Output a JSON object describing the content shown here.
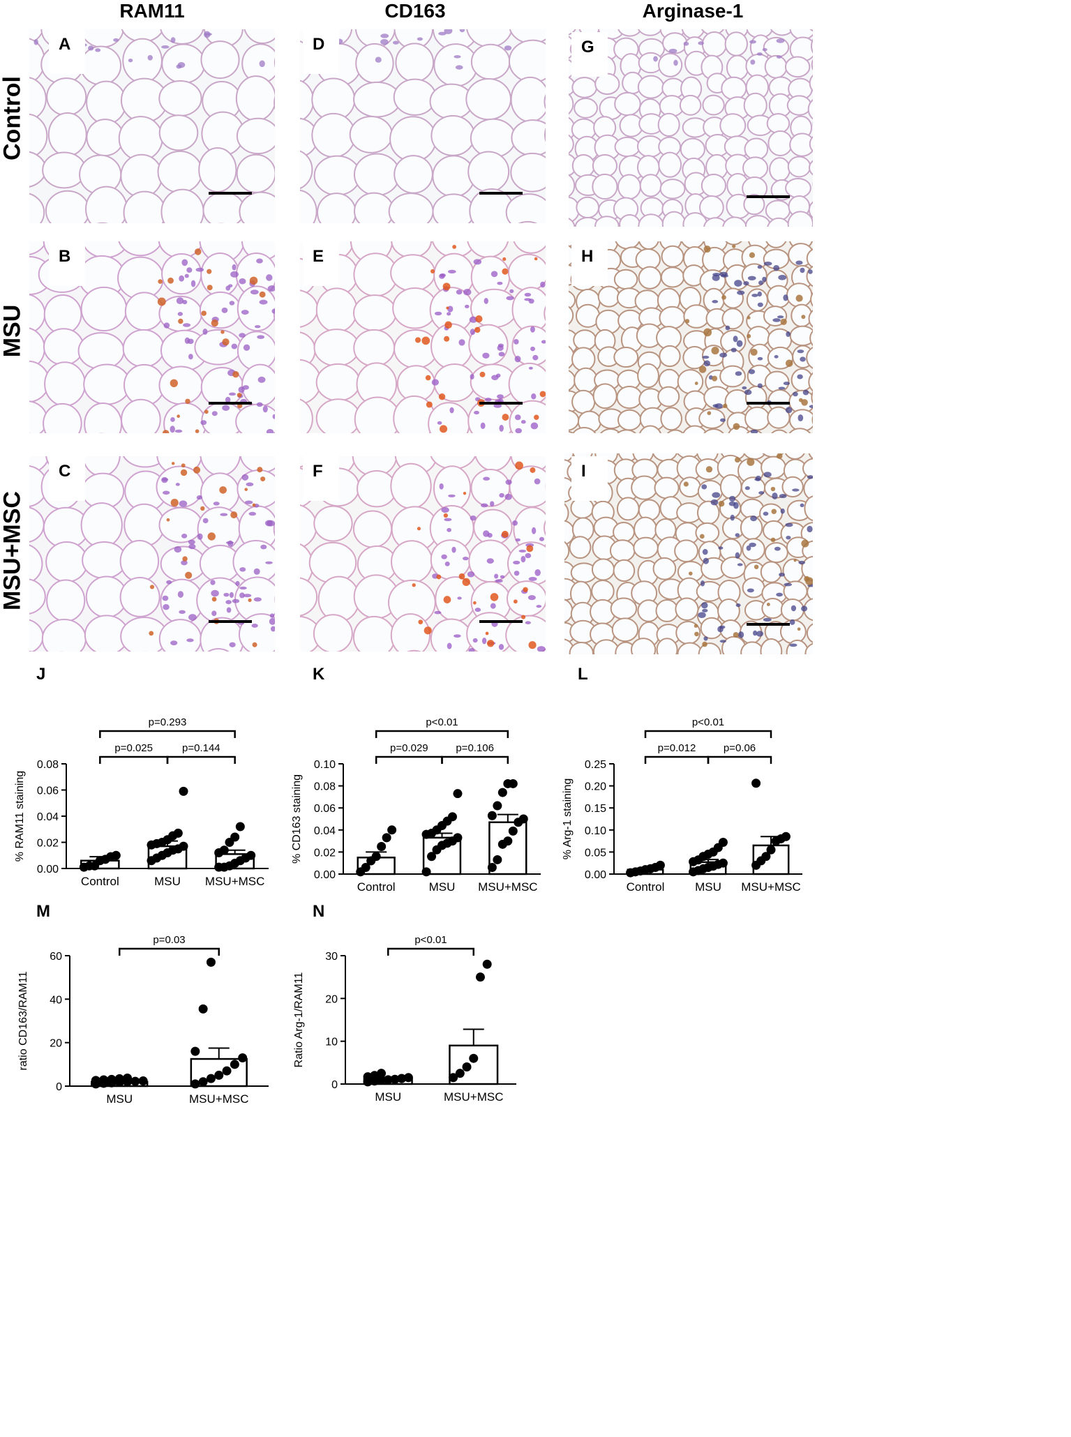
{
  "column_headers": [
    "RAM11",
    "CD163",
    "Arginase-1"
  ],
  "row_headers": [
    "Control",
    "MSU",
    "MSU+MSC"
  ],
  "micrograph_panels": [
    {
      "letter": "A",
      "stain": "light"
    },
    {
      "letter": "B",
      "stain": "moderate"
    },
    {
      "letter": "C",
      "stain": "moderate"
    },
    {
      "letter": "D",
      "stain": "light"
    },
    {
      "letter": "E",
      "stain": "strong"
    },
    {
      "letter": "F",
      "stain": "strong"
    },
    {
      "letter": "G",
      "stain": "light"
    },
    {
      "letter": "H",
      "stain": "brown"
    },
    {
      "letter": "I",
      "stain": "brown"
    }
  ],
  "colors": {
    "bar_edge": "#000000",
    "point": "#000000",
    "background": "#ffffff"
  },
  "chart_data": [
    {
      "letter": "J",
      "type": "bar",
      "ylabel": "% RAM11 staining",
      "categories": [
        "Control",
        "MSU",
        "MSU+MSC"
      ],
      "ylim": [
        0,
        0.08
      ],
      "yticks": [
        0.0,
        0.02,
        0.04,
        0.06,
        0.08
      ],
      "ytick_labels": [
        "0.00",
        "0.02",
        "0.04",
        "0.06",
        "0.08"
      ],
      "values": [
        0.006,
        0.017,
        0.011
      ],
      "sem": [
        0.003,
        0.004,
        0.003
      ],
      "points": [
        [
          0.001,
          0.002,
          0.002,
          0.006,
          0.007,
          0.009,
          0.01
        ],
        [
          0.006,
          0.008,
          0.01,
          0.012,
          0.014,
          0.015,
          0.017,
          0.018,
          0.019,
          0.02,
          0.022,
          0.025,
          0.027,
          0.059
        ],
        [
          0.001,
          0.001,
          0.002,
          0.004,
          0.006,
          0.008,
          0.01,
          0.012,
          0.014,
          0.02,
          0.024,
          0.032
        ]
      ],
      "comparisons": [
        {
          "from": 0,
          "to": 1,
          "label": "p=0.025",
          "level": 0
        },
        {
          "from": 1,
          "to": 2,
          "label": "p=0.144",
          "level": 0
        },
        {
          "from": 0,
          "to": 2,
          "label": "p=0.293",
          "level": 1
        }
      ]
    },
    {
      "letter": "K",
      "type": "bar",
      "ylabel": "% CD163 staining",
      "categories": [
        "Control",
        "MSU",
        "MSU+MSC"
      ],
      "ylim": [
        0,
        0.1
      ],
      "yticks": [
        0.0,
        0.02,
        0.04,
        0.06,
        0.08,
        0.1
      ],
      "ytick_labels": [
        "0.00",
        "0.02",
        "0.04",
        "0.06",
        "0.08",
        "0.10"
      ],
      "values": [
        0.015,
        0.033,
        0.047
      ],
      "sem": [
        0.005,
        0.004,
        0.007
      ],
      "points": [
        [
          0.002,
          0.006,
          0.012,
          0.016,
          0.025,
          0.033,
          0.04
        ],
        [
          0.002,
          0.016,
          0.022,
          0.026,
          0.028,
          0.03,
          0.033,
          0.036,
          0.037,
          0.04,
          0.044,
          0.048,
          0.052,
          0.073
        ],
        [
          0.006,
          0.013,
          0.027,
          0.03,
          0.039,
          0.047,
          0.05,
          0.053,
          0.062,
          0.074,
          0.082,
          0.082
        ]
      ],
      "comparisons": [
        {
          "from": 0,
          "to": 1,
          "label": "p=0.029",
          "level": 0
        },
        {
          "from": 1,
          "to": 2,
          "label": "p=0.106",
          "level": 0
        },
        {
          "from": 0,
          "to": 2,
          "label": "p<0.01",
          "level": 1
        }
      ]
    },
    {
      "letter": "L",
      "type": "bar",
      "ylabel": "% Arg-1 staining",
      "categories": [
        "Control",
        "MSU",
        "MSU+MSC"
      ],
      "ylim": [
        0,
        0.25
      ],
      "yticks": [
        0.0,
        0.05,
        0.1,
        0.15,
        0.2,
        0.25
      ],
      "ytick_labels": [
        "0.00",
        "0.05",
        "0.10",
        "0.15",
        "0.20",
        "0.25"
      ],
      "values": [
        0.01,
        0.027,
        0.065
      ],
      "sem": [
        0.003,
        0.006,
        0.02
      ],
      "points": [
        [
          0.003,
          0.005,
          0.007,
          0.01,
          0.012,
          0.015,
          0.02
        ],
        [
          0.005,
          0.008,
          0.012,
          0.015,
          0.018,
          0.022,
          0.025,
          0.028,
          0.032,
          0.04,
          0.045,
          0.05,
          0.06,
          0.072
        ],
        [
          0.02,
          0.03,
          0.04,
          0.055,
          0.075,
          0.08,
          0.085,
          0.206
        ]
      ],
      "comparisons": [
        {
          "from": 0,
          "to": 1,
          "label": "p=0.012",
          "level": 0
        },
        {
          "from": 1,
          "to": 2,
          "label": "p=0.06",
          "level": 0
        },
        {
          "from": 0,
          "to": 2,
          "label": "p<0.01",
          "level": 1
        }
      ]
    },
    {
      "letter": "M",
      "type": "bar",
      "ylabel": "ratio CD163/RAM11",
      "categories": [
        "MSU",
        "MSU+MSC"
      ],
      "ylim": [
        0,
        60
      ],
      "yticks": [
        0,
        20,
        40,
        60
      ],
      "ytick_labels": [
        "0",
        "20",
        "40",
        "60"
      ],
      "values": [
        2.0,
        12.5
      ],
      "sem": [
        0.3,
        5.0
      ],
      "points": [
        [
          1.0,
          1.3,
          1.5,
          1.8,
          2.0,
          2.2,
          2.4,
          2.6,
          2.9,
          3.1,
          3.4,
          3.7
        ],
        [
          1.0,
          2.0,
          3.5,
          5.0,
          7.0,
          10.0,
          13.0,
          16.0,
          35.5,
          57.0
        ]
      ],
      "comparisons": [
        {
          "from": 0,
          "to": 1,
          "label": "p=0.03",
          "level": 0
        }
      ]
    },
    {
      "letter": "N",
      "type": "bar",
      "ylabel": "Ratio Arg-1/RAM11",
      "categories": [
        "MSU",
        "MSU+MSC"
      ],
      "ylim": [
        0,
        30
      ],
      "yticks": [
        0,
        10,
        20,
        30
      ],
      "ytick_labels": [
        "0",
        "10",
        "20",
        "30"
      ],
      "values": [
        1.2,
        9.0
      ],
      "sem": [
        0.3,
        3.8
      ],
      "points": [
        [
          0.5,
          0.7,
          0.9,
          1.0,
          1.1,
          1.3,
          1.5,
          1.7,
          2.0,
          2.5
        ],
        [
          1.5,
          2.5,
          4.0,
          6.0,
          25.0,
          28.0
        ]
      ],
      "comparisons": [
        {
          "from": 0,
          "to": 1,
          "label": "p<0.01",
          "level": 0
        }
      ]
    }
  ]
}
